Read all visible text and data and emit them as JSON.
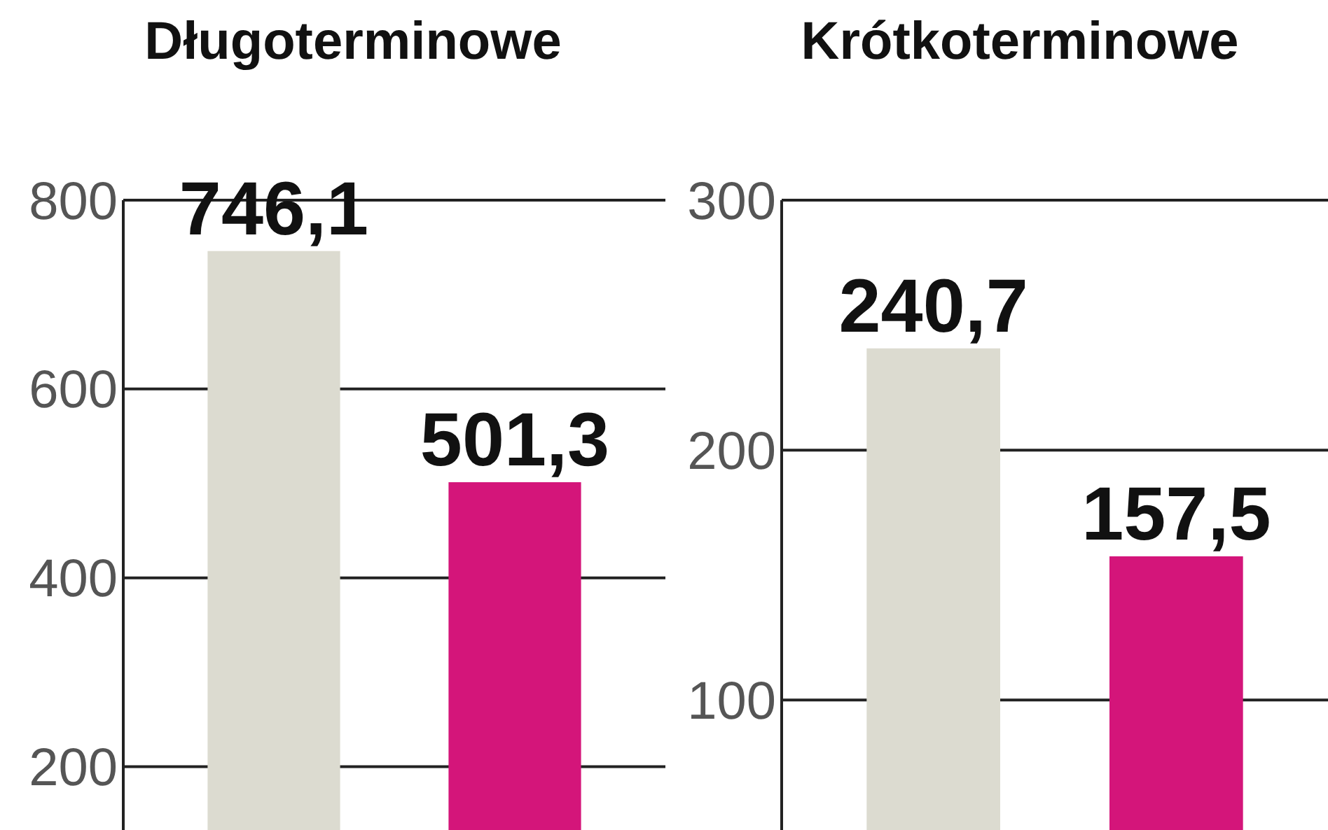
{
  "chart_data": [
    {
      "type": "bar",
      "title": "Długoterminowe",
      "categories": [
        null,
        null
      ],
      "values": [
        746.1,
        501.3
      ],
      "colors": [
        "#dcdbd0",
        "#d4157a"
      ],
      "value_labels": [
        "746,1",
        "501,3"
      ],
      "ylim": [
        133,
        800
      ],
      "yticks": [
        200,
        400,
        600,
        800
      ],
      "grid": "y"
    },
    {
      "type": "bar",
      "title": "Krótkoterminowe",
      "categories": [
        null,
        null
      ],
      "values": [
        240.7,
        157.5
      ],
      "colors": [
        "#dcdbd0",
        "#d4157a"
      ],
      "value_labels": [
        "240,7",
        "157,5"
      ],
      "ylim": [
        48,
        300
      ],
      "yticks": [
        100,
        200,
        300
      ],
      "grid": "y"
    }
  ]
}
